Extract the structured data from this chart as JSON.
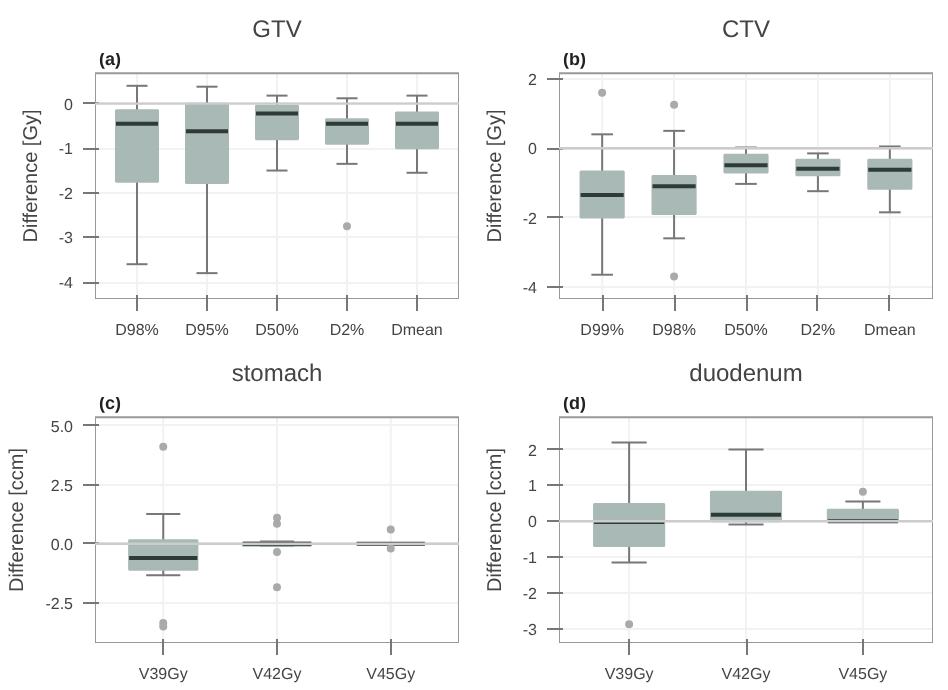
{
  "chart_data": [
    {
      "type": "box",
      "title": "GTV",
      "ylabel": "Difference [Gy]",
      "annotations": [
        "(a)"
      ],
      "categories": [
        "D98%",
        "D95%",
        "D50%",
        "D2%",
        "Dmean"
      ],
      "color": "#a9b9b6",
      "ylim": [
        -4.38,
        0.68
      ],
      "yticks": [
        -4,
        -3,
        -2,
        -1,
        0
      ],
      "grid": true,
      "ref_lines": [
        {
          "axis": "y",
          "value": 0,
          "color": "#cccccc"
        }
      ],
      "boxes": [
        {
          "low": -3.6,
          "q1": -1.75,
          "median": -0.45,
          "q3": -0.15,
          "high": 0.4
        },
        {
          "low": -3.8,
          "q1": -1.78,
          "median": -0.62,
          "q3": 0,
          "high": 0.38
        },
        {
          "low": -1.5,
          "q1": -0.8,
          "median": -0.22,
          "q3": -0.05,
          "high": 0.18
        },
        {
          "low": -1.35,
          "q1": -0.9,
          "median": -0.45,
          "q3": -0.35,
          "high": 0.12,
          "outliers": [
            -2.75
          ]
        },
        {
          "low": -1.55,
          "q1": -1.0,
          "median": -0.45,
          "q3": -0.2,
          "high": 0.18
        }
      ]
    },
    {
      "type": "box",
      "title": "CTV",
      "ylabel": "Difference [Gy]",
      "annotations": [
        "(b)"
      ],
      "categories": [
        "D99%",
        "D98%",
        "D50%",
        "D2%",
        "Dmean"
      ],
      "color": "#a9b9b6",
      "ylim": [
        -4.35,
        2.16
      ],
      "yticks": [
        -4,
        -2,
        0,
        2
      ],
      "grid": true,
      "ref_lines": [
        {
          "axis": "y",
          "value": 0,
          "color": "#cccccc"
        }
      ],
      "boxes": [
        {
          "low": -3.65,
          "q1": -2.0,
          "median": -1.35,
          "q3": -0.67,
          "high": 0.4,
          "outliers": [
            1.6
          ]
        },
        {
          "low": -2.6,
          "q1": -1.9,
          "median": -1.1,
          "q3": -0.8,
          "high": 0.5,
          "outliers": [
            1.25,
            -3.7
          ]
        },
        {
          "low": -1.03,
          "q1": -0.7,
          "median": -0.49,
          "q3": -0.19,
          "high": 0.02
        },
        {
          "low": -1.24,
          "q1": -0.78,
          "median": -0.59,
          "q3": -0.33,
          "high": -0.15
        },
        {
          "low": -1.85,
          "q1": -1.17,
          "median": -0.62,
          "q3": -0.33,
          "high": 0.05
        }
      ]
    },
    {
      "type": "box",
      "title": "stomach",
      "ylabel": "Difference [ccm]",
      "annotations": [
        "(c)"
      ],
      "categories": [
        "V39Gy",
        "V42Gy",
        "V45Gy"
      ],
      "color": "#a9b9b6",
      "ylim": [
        -4.2,
        5.35
      ],
      "yticks": [
        {
          "value": -2.5,
          "label": "-2.5"
        },
        {
          "value": 0,
          "label": "0.0"
        },
        {
          "value": 2.5,
          "label": "2.5"
        },
        {
          "value": 5,
          "label": "5.0"
        }
      ],
      "grid": true,
      "ref_lines": [
        {
          "axis": "y",
          "value": 0,
          "color": "#cccccc"
        }
      ],
      "boxes": [
        {
          "low": -1.33,
          "q1": -1.1,
          "median": -0.6,
          "q3": 0.15,
          "high": 1.26,
          "outliers": [
            4.1,
            -3.35,
            -3.5
          ]
        },
        {
          "low": -0.1,
          "q1": -0.08,
          "median": 0,
          "q3": 0.05,
          "high": 0.1,
          "outliers": [
            1.1,
            0.85,
            -0.35,
            -1.84
          ]
        },
        {
          "low": 0,
          "q1": 0,
          "median": 0,
          "q3": 0,
          "high": 0,
          "outliers": [
            0.6,
            -0.2
          ]
        }
      ]
    },
    {
      "type": "box",
      "title": "duodenum",
      "ylabel": "Difference [ccm]",
      "annotations": [
        "(d)"
      ],
      "categories": [
        "V39Gy",
        "V42Gy",
        "V45Gy"
      ],
      "color": "#a9b9b6",
      "ylim": [
        -3.4,
        2.9
      ],
      "yticks": [
        -3,
        -2,
        -1,
        0,
        1,
        2
      ],
      "grid": true,
      "ref_lines": [
        {
          "axis": "y",
          "value": 0,
          "color": "#cccccc"
        }
      ],
      "boxes": [
        {
          "low": -1.15,
          "q1": -0.69,
          "median": -0.02,
          "q3": 0.48,
          "high": 2.2,
          "outliers": [
            -2.88
          ]
        },
        {
          "low": -0.09,
          "q1": 0,
          "median": 0.18,
          "q3": 0.82,
          "high": 2.0
        },
        {
          "low": 0,
          "q1": 0,
          "median": 0,
          "q3": 0.32,
          "high": 0.55,
          "outliers": [
            0.82
          ]
        }
      ]
    }
  ]
}
